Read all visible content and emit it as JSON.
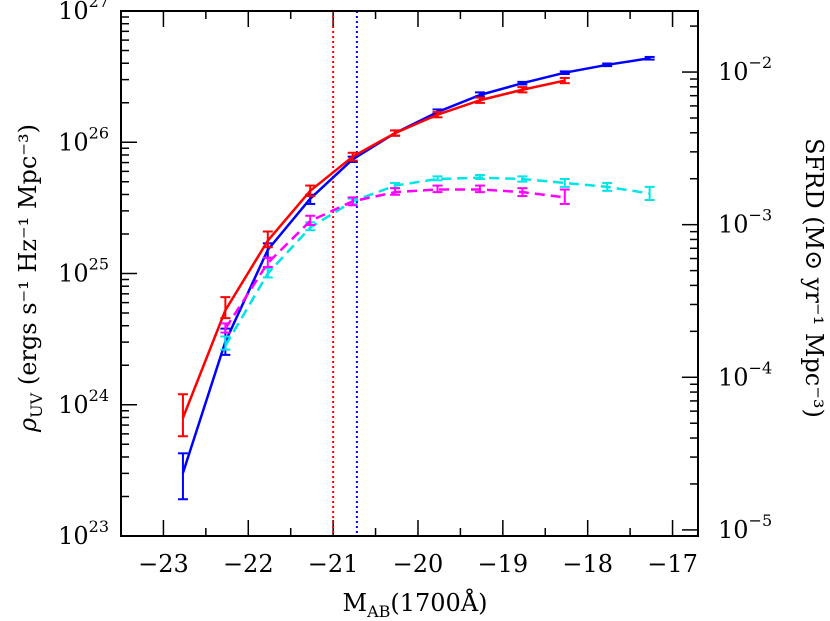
{
  "chart_data": {
    "type": "line",
    "x_label": {
      "main": "M",
      "sub": "AB",
      "tail": "(1700Å)"
    },
    "y_label_left": {
      "main": "ρ",
      "sub": "UV",
      "tail": " (ergs s⁻¹ Hz⁻¹ Mpc⁻³)"
    },
    "y_label_right": "SFRD (M⊙ yr⁻¹ Mpc⁻³)",
    "xlim": [
      -23.5,
      -16.7
    ],
    "ylim_log10": [
      23,
      27
    ],
    "x_ticks": [
      "−23",
      "−22",
      "−21",
      "−20",
      "−19",
      "−18",
      "−17"
    ],
    "x_tick_values": [
      -23,
      -22,
      -21,
      -20,
      -19,
      -18,
      -17
    ],
    "y_ticks_left": [
      {
        "value_log10": 23,
        "base": "10",
        "exp": "23"
      },
      {
        "value_log10": 24,
        "base": "10",
        "exp": "24"
      },
      {
        "value_log10": 25,
        "base": "10",
        "exp": "25"
      },
      {
        "value_log10": 26,
        "base": "10",
        "exp": "26"
      },
      {
        "value_log10": 27,
        "base": "10",
        "exp": "27"
      }
    ],
    "y_ticks_right": [
      {
        "value_log10": -5,
        "base": "10",
        "exp": "−5"
      },
      {
        "value_log10": -4,
        "base": "10",
        "exp": "−4"
      },
      {
        "value_log10": -3,
        "base": "10",
        "exp": "−3"
      },
      {
        "value_log10": -2,
        "base": "10",
        "exp": "−2"
      }
    ],
    "right_axis_log10_range": [
      -5.04,
      -1.6
    ],
    "vertical_lines": [
      {
        "x": -21.0,
        "color": "#ff0000",
        "style": "dotted"
      },
      {
        "x": -20.72,
        "color": "#0000ff",
        "style": "dotted"
      }
    ],
    "series": [
      {
        "color": "#0000ff",
        "style": "solid",
        "points": [
          {
            "x": -22.77,
            "y": 23.48,
            "lo": 23.28,
            "hi": 23.63
          },
          {
            "x": -22.27,
            "y": 24.48,
            "lo": 24.38,
            "hi": 24.58
          },
          {
            "x": -21.77,
            "y": 25.18,
            "lo": 25.12,
            "hi": 25.23
          },
          {
            "x": -21.27,
            "y": 25.57,
            "lo": 25.53,
            "hi": 25.6
          },
          {
            "x": -20.77,
            "y": 25.87,
            "lo": 25.85,
            "hi": 25.89
          },
          {
            "x": -20.27,
            "y": 26.07,
            "lo": 26.05,
            "hi": 26.09
          },
          {
            "x": -19.77,
            "y": 26.23,
            "lo": 26.22,
            "hi": 26.25
          },
          {
            "x": -19.27,
            "y": 26.36,
            "lo": 26.35,
            "hi": 26.38
          },
          {
            "x": -18.77,
            "y": 26.45,
            "lo": 26.44,
            "hi": 26.46
          },
          {
            "x": -18.27,
            "y": 26.53,
            "lo": 26.52,
            "hi": 26.54
          },
          {
            "x": -17.77,
            "y": 26.59,
            "lo": 26.58,
            "hi": 26.6
          },
          {
            "x": -17.27,
            "y": 26.64,
            "lo": 26.63,
            "hi": 26.65
          }
        ]
      },
      {
        "color": "#ff0000",
        "style": "solid",
        "points": [
          {
            "x": -22.77,
            "y": 23.9,
            "lo": 23.76,
            "hi": 24.08
          },
          {
            "x": -22.27,
            "y": 24.72,
            "lo": 24.66,
            "hi": 24.82
          },
          {
            "x": -21.77,
            "y": 25.25,
            "lo": 25.2,
            "hi": 25.32
          },
          {
            "x": -21.27,
            "y": 25.63,
            "lo": 25.59,
            "hi": 25.67
          },
          {
            "x": -20.77,
            "y": 25.89,
            "lo": 25.86,
            "hi": 25.92
          },
          {
            "x": -20.27,
            "y": 26.07,
            "lo": 26.05,
            "hi": 26.09
          },
          {
            "x": -19.77,
            "y": 26.21,
            "lo": 26.19,
            "hi": 26.23
          },
          {
            "x": -19.27,
            "y": 26.32,
            "lo": 26.3,
            "hi": 26.34
          },
          {
            "x": -18.77,
            "y": 26.4,
            "lo": 26.38,
            "hi": 26.42
          },
          {
            "x": -18.27,
            "y": 26.47,
            "lo": 26.45,
            "hi": 26.49
          }
        ]
      },
      {
        "color": "#00e5e5",
        "style": "dashed",
        "points": [
          {
            "x": -22.27,
            "y": 24.45,
            "lo": 24.42,
            "hi": 24.52
          },
          {
            "x": -21.77,
            "y": 25.0,
            "lo": 24.97,
            "hi": 25.04
          },
          {
            "x": -21.27,
            "y": 25.35,
            "lo": 25.33,
            "hi": 25.39
          },
          {
            "x": -20.77,
            "y": 25.55,
            "lo": 25.53,
            "hi": 25.57
          },
          {
            "x": -20.27,
            "y": 25.67,
            "lo": 25.65,
            "hi": 25.69
          },
          {
            "x": -19.77,
            "y": 25.72,
            "lo": 25.71,
            "hi": 25.74
          },
          {
            "x": -19.27,
            "y": 25.73,
            "lo": 25.72,
            "hi": 25.75
          },
          {
            "x": -18.77,
            "y": 25.72,
            "lo": 25.7,
            "hi": 25.74
          },
          {
            "x": -18.27,
            "y": 25.69,
            "lo": 25.66,
            "hi": 25.72
          },
          {
            "x": -17.77,
            "y": 25.66,
            "lo": 25.63,
            "hi": 25.69
          },
          {
            "x": -17.27,
            "y": 25.61,
            "lo": 25.56,
            "hi": 25.66
          }
        ]
      },
      {
        "color": "#ff00ff",
        "style": "dashed",
        "points": [
          {
            "x": -22.27,
            "y": 24.58,
            "lo": 24.55,
            "hi": 24.62
          },
          {
            "x": -21.77,
            "y": 25.08,
            "lo": 25.05,
            "hi": 25.12
          },
          {
            "x": -21.27,
            "y": 25.4,
            "lo": 25.37,
            "hi": 25.44
          },
          {
            "x": -20.77,
            "y": 25.55,
            "lo": 25.52,
            "hi": 25.58
          },
          {
            "x": -20.27,
            "y": 25.62,
            "lo": 25.6,
            "hi": 25.65
          },
          {
            "x": -19.77,
            "y": 25.64,
            "lo": 25.62,
            "hi": 25.67
          },
          {
            "x": -19.27,
            "y": 25.64,
            "lo": 25.62,
            "hi": 25.67
          },
          {
            "x": -18.77,
            "y": 25.62,
            "lo": 25.59,
            "hi": 25.65
          },
          {
            "x": -18.27,
            "y": 25.58,
            "lo": 25.53,
            "hi": 25.64
          }
        ]
      }
    ]
  }
}
